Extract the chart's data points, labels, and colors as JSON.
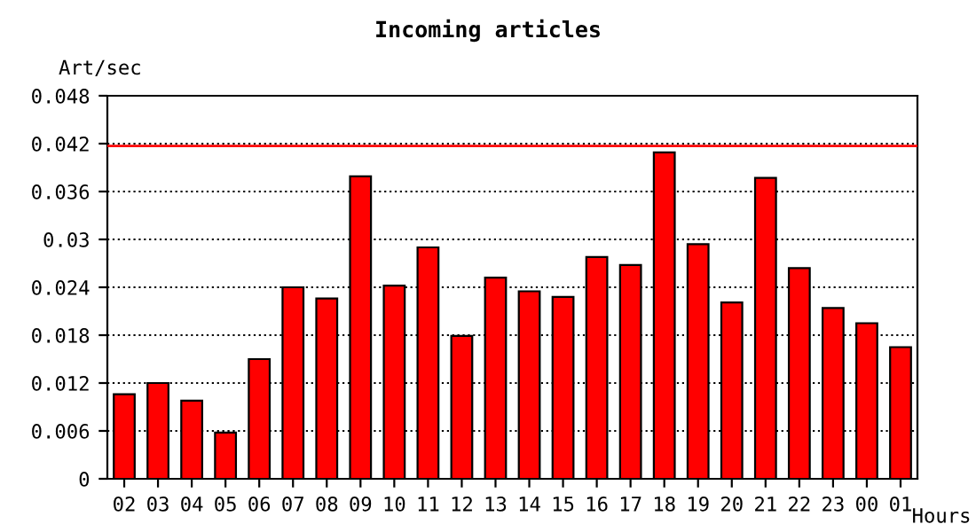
{
  "chart_data": {
    "type": "bar",
    "title": "Incoming articles",
    "ylabel": "Art/sec",
    "xlabel": "Hours",
    "categories": [
      "02",
      "03",
      "04",
      "05",
      "06",
      "07",
      "08",
      "09",
      "10",
      "11",
      "12",
      "13",
      "14",
      "15",
      "16",
      "17",
      "18",
      "19",
      "20",
      "21",
      "22",
      "23",
      "00",
      "01"
    ],
    "series": [
      {
        "color": "#ff0000",
        "values": [
          0.0106,
          0.012,
          0.0098,
          0.0058,
          0.015,
          0.024,
          0.0226,
          0.0379,
          0.0242,
          0.029,
          0.0179,
          0.0252,
          0.0235,
          0.0228,
          0.0278,
          0.0268,
          0.0409,
          0.0294,
          0.0221,
          0.0377,
          0.0264,
          0.0214,
          0.0195,
          0.0165
        ]
      }
    ],
    "ylim": [
      0,
      0.048
    ],
    "yticks": [
      0,
      0.006,
      0.012,
      0.018,
      0.024,
      0.03,
      0.036,
      0.042,
      0.048
    ],
    "grid": "y",
    "line_style": "dotted",
    "ref_lines": [
      {
        "axis": "y",
        "value": 0.0417,
        "color": "#ff0000"
      }
    ]
  }
}
